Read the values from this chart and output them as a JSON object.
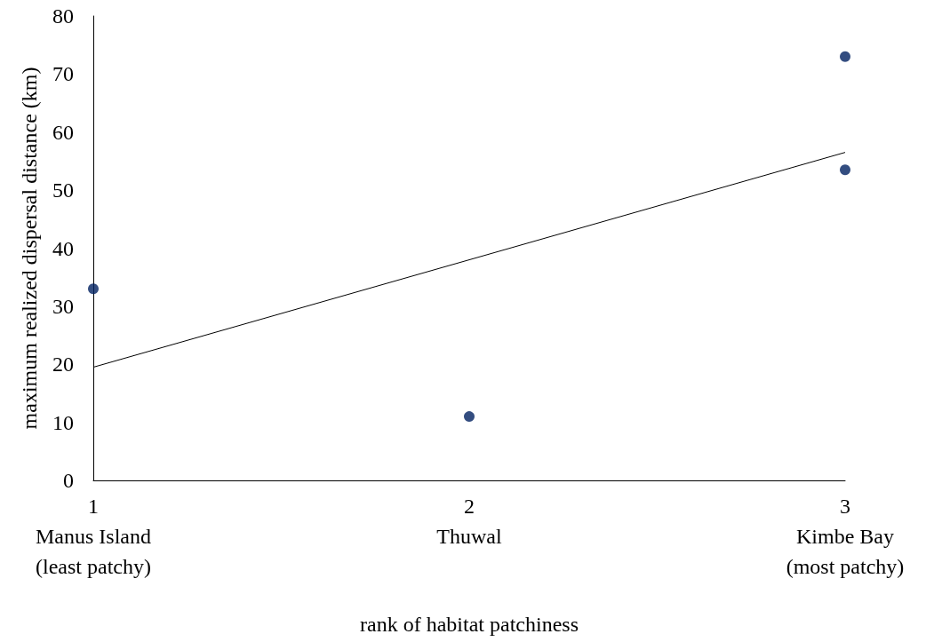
{
  "chart_data": {
    "type": "scatter",
    "xlabel": "rank of habitat patchiness",
    "ylabel": "maximum realized dispersal distance (km)",
    "xlim": [
      1,
      3
    ],
    "xticks": [
      {
        "value": 1,
        "label": "1\nManus Island\n(least patchy)"
      },
      {
        "value": 2,
        "label": "2\nThuwal"
      },
      {
        "value": 3,
        "label": "3\nKimbe Bay\n(most patchy)"
      }
    ],
    "ylim": [
      0,
      80
    ],
    "yticks": [
      0,
      10,
      20,
      30,
      40,
      50,
      60,
      70,
      80
    ],
    "grid": false,
    "series": [
      {
        "color": "#002060",
        "marker": "circle",
        "x": [
          1,
          2,
          3,
          3
        ],
        "values": [
          33,
          11,
          73,
          53.5
        ]
      },
      {
        "type": "line",
        "color": "#000000",
        "marker": "none",
        "line_style": "solid",
        "x": [
          1,
          3
        ],
        "values": [
          19.5,
          56.5
        ]
      }
    ]
  }
}
